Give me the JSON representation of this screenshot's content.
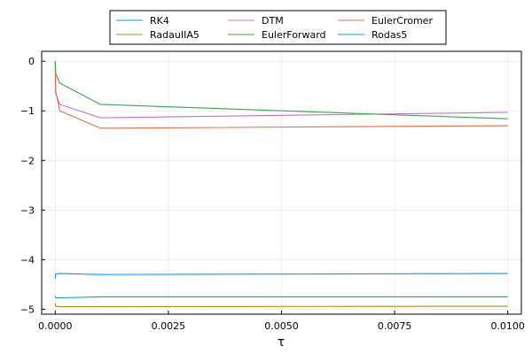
{
  "chart_data": {
    "type": "line",
    "xlabel": "τ",
    "ylabel": "",
    "xlim": [
      -0.0003,
      0.0103
    ],
    "ylim": [
      -5.1,
      0.2
    ],
    "xticks": [
      0.0,
      0.0025,
      0.005,
      0.0075,
      0.01
    ],
    "xtick_labels": [
      "0.0000",
      "0.0025",
      "0.0050",
      "0.0075",
      "0.0100"
    ],
    "yticks": [
      0,
      -1,
      -2,
      -3,
      -4,
      -5
    ],
    "ytick_labels": [
      "0",
      "−1",
      "−2",
      "−3",
      "−4",
      "−5"
    ],
    "grid": true,
    "legend_placement": "top-center outside",
    "series": [
      {
        "name": "RK4",
        "color": "#009AFA",
        "x": [
          0.0,
          1e-05,
          0.0001,
          0.001,
          0.01
        ],
        "y": [
          -4.38,
          -4.29,
          -4.28,
          -4.3,
          -4.28
        ]
      },
      {
        "name": "DTM",
        "color": "#C271D2",
        "x": [
          0.0,
          1e-05,
          0.0001,
          0.001,
          0.01
        ],
        "y": [
          0.0,
          -0.65,
          -0.87,
          -1.14,
          -1.03
        ]
      },
      {
        "name": "EulerCromer",
        "color": "#E26F46",
        "x": [
          0.0,
          1e-05,
          0.0001,
          0.001,
          0.01
        ],
        "y": [
          0.0,
          -0.6,
          -1.0,
          -1.35,
          -1.3
        ]
      },
      {
        "name": "RadauIIA5",
        "color": "#AC8D18",
        "x": [
          0.0,
          1e-05,
          0.0001,
          0.001,
          0.01
        ],
        "y": [
          -4.88,
          -4.94,
          -4.95,
          -4.95,
          -4.94
        ]
      },
      {
        "name": "EulerForward",
        "color": "#3DA44D",
        "x": [
          0.0,
          1e-05,
          0.0001,
          0.001,
          0.01
        ],
        "y": [
          0.0,
          -0.25,
          -0.44,
          -0.87,
          -1.16
        ]
      },
      {
        "name": "Rodas5",
        "color": "#00A9AD",
        "x": [
          0.0,
          1e-05,
          0.0001,
          0.001,
          0.01
        ],
        "y": [
          -4.74,
          -4.77,
          -4.77,
          -4.75,
          -4.75
        ]
      }
    ]
  }
}
